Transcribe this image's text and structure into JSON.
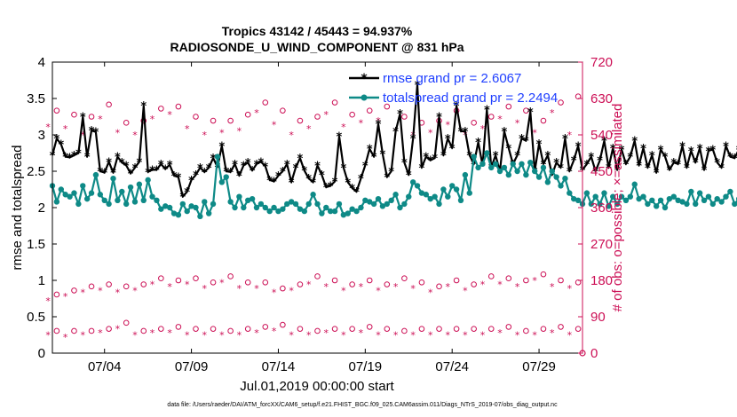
{
  "colors": {
    "rmse": "#000000",
    "spread": "#0e8a87",
    "obs": "#cc0f55",
    "legend_text": "#1f3fff",
    "axis": "#000000"
  },
  "chart_data": {
    "type": "line",
    "title_line1": "Tropics 43142 / 45443 = 94.937%",
    "title_line2": "RADIOSONDE_U_WIND_COMPONENT @ 831 hPa",
    "xlabel": "Jul.01,2019 00:00:00 start",
    "ylabel_left": "rmse and totalspread",
    "ylabel_right": "# of obs: o=possible; ×=assimilated",
    "footer": "data file: /Users/raeder/DAI/ATM_forcXX/CAM6_setup/f.e21.FHIST_BGC.f09_025.CAM6assim.011/Diags_NTrS_2019-07/obs_diag_output.nc",
    "x_range_days": [
      0.5,
      31.0
    ],
    "ylim_left": [
      0,
      4
    ],
    "ylim_right": [
      0,
      720
    ],
    "yticks_left": [
      "0",
      "0.5",
      "1",
      "1.5",
      "2",
      "2.5",
      "3",
      "3.5",
      "4"
    ],
    "yticks_right": [
      "0",
      "90",
      "180",
      "270",
      "360",
      "450",
      "540",
      "630",
      "720"
    ],
    "xtick_days": [
      3.5,
      8.5,
      13.5,
      18.5,
      23.5,
      28.5
    ],
    "xtick_labels": [
      "07/04",
      "07/09",
      "07/14",
      "07/19",
      "07/24",
      "07/29"
    ],
    "legend": {
      "rmse_label": "rmse grand pr = 2.6067",
      "spread_label": "totalspread grand pr = 2.2494",
      "position": "top-right"
    },
    "series": [
      {
        "name": "rmse",
        "style": "line-asterisk",
        "x_start": 0.5,
        "x_step": 0.25,
        "values": [
          2.72,
          2.95,
          2.87,
          2.7,
          2.69,
          2.72,
          2.75,
          3.25,
          2.7,
          3.06,
          3.04,
          2.5,
          2.48,
          2.63,
          2.48,
          2.7,
          2.62,
          2.58,
          2.47,
          2.55,
          2.63,
          3.4,
          2.49,
          2.52,
          2.52,
          2.6,
          2.53,
          2.59,
          2.44,
          2.42,
          2.15,
          2.22,
          2.38,
          2.45,
          2.55,
          2.49,
          2.55,
          2.68,
          2.56,
          2.85,
          2.5,
          2.49,
          2.6,
          2.44,
          2.58,
          2.62,
          2.51,
          2.6,
          2.63,
          2.57,
          2.38,
          2.36,
          2.44,
          2.5,
          2.6,
          2.35,
          2.55,
          2.68,
          2.51,
          2.4,
          2.35,
          2.58,
          2.45,
          2.28,
          2.3,
          2.36,
          2.98,
          2.55,
          2.35,
          2.27,
          2.22,
          2.4,
          2.58,
          2.81,
          2.7,
          3.15,
          2.74,
          2.42,
          2.5,
          3.05,
          3.29,
          2.62,
          2.45,
          2.95,
          3.69,
          2.55,
          2.7,
          2.65,
          2.68,
          3.25,
          2.72,
          2.95,
          2.82,
          3.4,
          3.05,
          3.05,
          2.72,
          2.6,
          2.9,
          2.58,
          3.35,
          2.55,
          2.72,
          2.5,
          3.05,
          2.82,
          2.6,
          2.72,
          2.95,
          2.92,
          3.32,
          2.5,
          2.88,
          2.6,
          2.72,
          2.45,
          2.62,
          2.55,
          2.95,
          2.5,
          2.65,
          2.85,
          2.52,
          2.6,
          2.7,
          2.5,
          2.65,
          2.92,
          2.55,
          2.82,
          2.52,
          2.8,
          2.6,
          2.7,
          2.92,
          2.58,
          2.82,
          2.55,
          2.72,
          2.48,
          2.8,
          2.7,
          2.52,
          2.62,
          2.6,
          2.85,
          2.55,
          2.78,
          2.62,
          2.82,
          2.52,
          2.78,
          2.8,
          2.62,
          2.55,
          2.85,
          2.7,
          2.68,
          2.8,
          2.7,
          2.72,
          2.7,
          2.45,
          2.72,
          2.58,
          2.75,
          2.55,
          2.75,
          2.62,
          2.8,
          2.55,
          2.5,
          2.75,
          3.4,
          2.52,
          2.55,
          2.72,
          2.6,
          2.72,
          2.82,
          2.75,
          2.55,
          2.72,
          2.62,
          2.62
        ]
      },
      {
        "name": "totalspread",
        "style": "line-dot",
        "x_start": 0.5,
        "x_step": 0.25,
        "values": [
          2.3,
          2.08,
          2.25,
          2.18,
          2.15,
          2.2,
          2.05,
          2.3,
          2.12,
          2.2,
          2.45,
          2.18,
          2.1,
          2.05,
          2.4,
          2.1,
          2.22,
          2.05,
          2.28,
          2.08,
          2.32,
          2.1,
          2.38,
          2.15,
          2.1,
          1.98,
          2.02,
          2.0,
          1.92,
          1.9,
          2.05,
          1.95,
          2.02,
          2.0,
          1.88,
          2.08,
          1.92,
          2.05,
          2.7,
          2.35,
          2.42,
          2.08,
          2.0,
          2.15,
          2.0,
          2.1,
          2.12,
          2.0,
          2.05,
          2.0,
          1.95,
          2.0,
          1.95,
          1.98,
          2.05,
          2.08,
          2.05,
          1.98,
          1.95,
          2.05,
          2.18,
          2.05,
          1.92,
          2.0,
          1.95,
          1.95,
          2.05,
          1.9,
          1.92,
          1.98,
          1.95,
          2.0,
          2.1,
          2.08,
          2.05,
          2.12,
          2.02,
          2.05,
          2.1,
          2.18,
          2.0,
          2.05,
          2.15,
          2.35,
          2.3,
          2.2,
          2.18,
          2.12,
          2.15,
          2.05,
          2.25,
          2.15,
          2.3,
          2.25,
          2.1,
          2.45,
          2.2,
          2.7,
          2.55,
          2.6,
          2.75,
          2.55,
          2.6,
          2.5,
          2.55,
          2.45,
          2.6,
          2.5,
          2.6,
          2.45,
          2.62,
          2.5,
          2.42,
          2.55,
          2.35,
          2.5,
          2.42,
          2.3,
          2.4,
          2.2,
          2.12,
          2.1,
          2.05,
          2.2,
          2.05,
          2.15,
          2.05,
          2.2,
          2.02,
          2.15,
          2.05,
          2.15,
          2.1,
          2.15,
          2.32,
          2.12,
          2.15,
          2.05,
          2.1,
          2.02,
          2.1,
          2.0,
          2.12,
          2.15,
          2.1,
          2.08,
          2.05,
          2.22,
          2.05,
          2.2,
          2.1,
          2.15,
          2.05,
          2.12,
          2.08,
          2.15,
          2.22,
          2.05,
          2.12,
          2.25,
          2.1,
          2.2,
          2.15,
          2.22,
          2.05,
          2.2,
          2.05,
          2.32,
          2.15,
          2.3,
          2.28,
          2.2,
          2.3,
          2.25,
          2.15,
          2.12,
          2.25,
          2.2,
          2.1,
          2.22,
          2.3,
          2.15,
          2.12,
          2.22,
          2.22,
          2.22
        ]
      }
    ],
    "obs_counts": {
      "possible_marker": "o",
      "assimilated_marker": "*",
      "x_start": 0.5,
      "x_step": 0.5,
      "cycle_count": 61,
      "high_possible": [
        600,
        590,
        585,
        615,
        570,
        575,
        605,
        610,
        585,
        575,
        575,
        590,
        620,
        600,
        575,
        585,
        620,
        590,
        600,
        610,
        585,
        570,
        575,
        600,
        570,
        585,
        610,
        600,
        575,
        620,
        635
      ],
      "high_assimilated": [
        560,
        555,
        540,
        580,
        545,
        540,
        580,
        590,
        555,
        540,
        545,
        550,
        595,
        565,
        540,
        555,
        590,
        560,
        570,
        575,
        550,
        540,
        545,
        565,
        540,
        555,
        580,
        570,
        545,
        595,
        540
      ],
      "low_possible": [
        55,
        55,
        55,
        60,
        75,
        55,
        60,
        65,
        60,
        60,
        55,
        60,
        65,
        70,
        60,
        55,
        60,
        60,
        65,
        60,
        55,
        60,
        60,
        60,
        60,
        60,
        65,
        55,
        60,
        65,
        60
      ],
      "low_assimilated": [
        45,
        40,
        45,
        50,
        60,
        45,
        50,
        50,
        45,
        45,
        45,
        45,
        50,
        55,
        45,
        45,
        50,
        45,
        50,
        45,
        45,
        45,
        45,
        45,
        45,
        45,
        50,
        45,
        45,
        50,
        45
      ],
      "mid_possible": [
        145,
        155,
        165,
        170,
        165,
        170,
        185,
        180,
        185,
        175,
        190,
        175,
        175,
        160,
        170,
        190,
        180,
        170,
        180,
        170,
        185,
        175,
        165,
        180,
        170,
        190,
        185,
        180,
        195,
        180,
        175
      ],
      "mid_assimilated": [
        130,
        140,
        150,
        155,
        150,
        155,
        170,
        165,
        170,
        160,
        175,
        160,
        160,
        150,
        155,
        170,
        165,
        155,
        165,
        155,
        165,
        160,
        150,
        165,
        155,
        170,
        170,
        165,
        180,
        165,
        160
      ],
      "last_point": 0
    }
  }
}
